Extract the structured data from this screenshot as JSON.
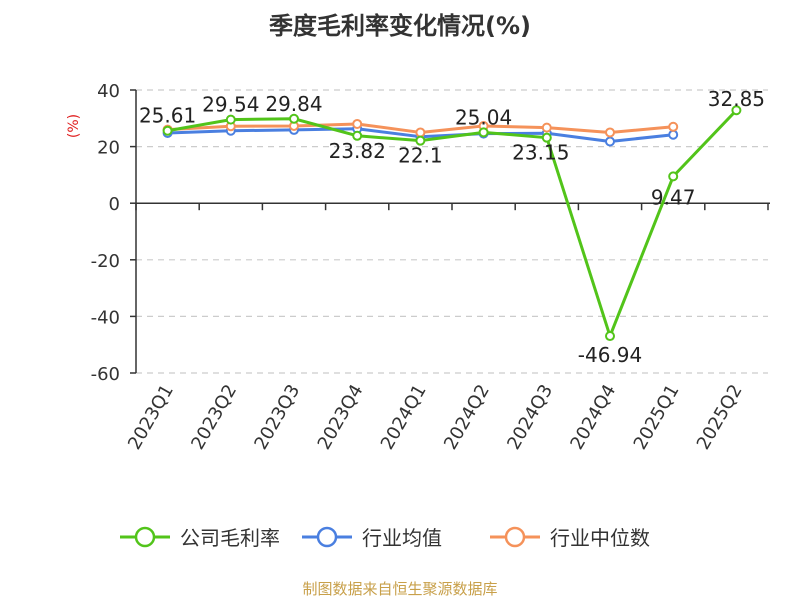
{
  "chart_data": {
    "type": "line",
    "title": "季度毛利率变化情况(%)",
    "unit_label": "(%)",
    "source": "制图数据来自恒生聚源数据库",
    "categories": [
      "2023Q1",
      "2023Q2",
      "2023Q3",
      "2023Q4",
      "2024Q1",
      "2024Q2",
      "2024Q3",
      "2024Q4",
      "2025Q1",
      "2025Q2"
    ],
    "ylim": [
      -60,
      40
    ],
    "yticks": [
      40,
      20,
      0,
      -20,
      -40,
      -60
    ],
    "grid": true,
    "legend_position": "bottom",
    "series": [
      {
        "name": "公司毛利率",
        "color": "#52c41a",
        "values": [
          25.61,
          29.54,
          29.84,
          23.82,
          22.1,
          25.04,
          23.15,
          -46.94,
          9.47,
          32.85
        ],
        "labels": [
          "25.61",
          "29.54",
          "29.84",
          "23.82",
          "22.1",
          "25.04",
          "23.15",
          "-46.94",
          "9.47",
          "32.85"
        ]
      },
      {
        "name": "行业均值",
        "color": "#4a7fe0",
        "values": [
          24.8,
          25.6,
          25.9,
          26.3,
          23.5,
          24.6,
          24.7,
          21.8,
          24.2,
          null
        ]
      },
      {
        "name": "行业中位数",
        "color": "#f5925a",
        "values": [
          26.0,
          27.2,
          27.3,
          28.0,
          25.0,
          27.3,
          26.7,
          25.0,
          27.0,
          null
        ]
      }
    ]
  }
}
